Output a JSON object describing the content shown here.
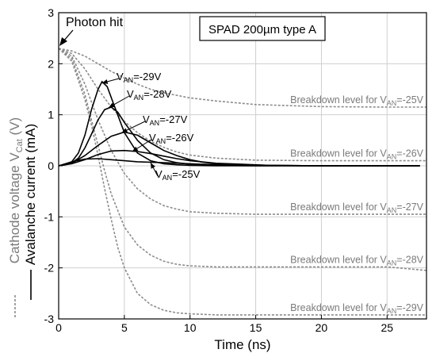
{
  "chart_data": {
    "type": "line",
    "title": "SPAD 200µm type A",
    "xlabel": "Time (ns)",
    "ylabel_cathode": {
      "main": "Cathode voltage V",
      "sub": "Cat",
      "unit": " (V)"
    },
    "ylabel_current": "Avalanche current (mA)",
    "xlim": [
      0,
      28
    ],
    "ylim": [
      -3,
      3
    ],
    "x_ticks": [
      0,
      5,
      10,
      15,
      20,
      25
    ],
    "y_ticks": [
      3,
      2,
      1,
      0,
      -1,
      -2,
      -3
    ],
    "grid": true,
    "annotation": "Photon hit",
    "colors": {
      "current": "#000000",
      "cathode": "#8c8c8c",
      "grid": "#cfcfcf"
    },
    "breakdown_labels": [
      {
        "prefix": "Breakdown level for V",
        "sub": "AN",
        "suffix": "=-25V",
        "level": 1.15
      },
      {
        "prefix": "Breakdown level for V",
        "sub": "AN",
        "suffix": "=-26V",
        "level": 0.1
      },
      {
        "prefix": "Breakdown level for V",
        "sub": "AN",
        "suffix": "=-27V",
        "level": -0.95
      },
      {
        "prefix": "Breakdown level for V",
        "sub": "AN",
        "suffix": "=-28V",
        "level": -1.98
      },
      {
        "prefix": "Breakdown level for V",
        "sub": "AN",
        "suffix": "=-29V",
        "level": -2.92
      }
    ],
    "current_series": [
      {
        "prefix": "V",
        "sub": "AN",
        "suffix": "=-29V",
        "x": [
          0,
          0.5,
          1,
          1.5,
          2,
          2.5,
          3,
          3.3,
          3.7,
          4.2,
          5,
          6,
          7,
          8,
          9,
          10,
          12,
          15,
          20,
          25,
          27.5
        ],
        "values": [
          0,
          0.02,
          0.08,
          0.25,
          0.6,
          1.1,
          1.5,
          1.65,
          1.55,
          1.2,
          0.65,
          0.25,
          0.1,
          0.04,
          0.02,
          0.01,
          0,
          0,
          0,
          0,
          0
        ]
      },
      {
        "prefix": "V",
        "sub": "AN",
        "suffix": "=-28V",
        "x": [
          0,
          0.5,
          1,
          1.5,
          2,
          2.5,
          3,
          3.5,
          4,
          4.5,
          5,
          6,
          7,
          8,
          9,
          10,
          12,
          15,
          20,
          25,
          27.5
        ],
        "values": [
          0,
          0.02,
          0.06,
          0.15,
          0.35,
          0.62,
          0.9,
          1.1,
          1.15,
          1.05,
          0.85,
          0.5,
          0.25,
          0.12,
          0.06,
          0.03,
          0.01,
          0,
          0,
          0,
          0
        ]
      },
      {
        "prefix": "V",
        "sub": "AN",
        "suffix": "=-27V",
        "x": [
          0,
          1,
          2,
          3,
          4,
          5,
          6,
          7,
          8,
          9,
          10,
          11,
          12,
          14,
          16,
          20,
          25,
          27.5
        ],
        "values": [
          0,
          0.05,
          0.2,
          0.4,
          0.58,
          0.66,
          0.6,
          0.45,
          0.3,
          0.2,
          0.12,
          0.07,
          0.04,
          0.02,
          0.01,
          0,
          0,
          0
        ]
      },
      {
        "prefix": "V",
        "sub": "AN",
        "suffix": "=-26V",
        "x": [
          0,
          1,
          2,
          3,
          4,
          5,
          6,
          7,
          8,
          9,
          10,
          12,
          14,
          16,
          20,
          25,
          27.5
        ],
        "values": [
          0,
          0.04,
          0.12,
          0.22,
          0.29,
          0.3,
          0.28,
          0.24,
          0.19,
          0.14,
          0.1,
          0.05,
          0.03,
          0.01,
          0,
          0,
          0
        ]
      },
      {
        "prefix": "V",
        "sub": "AN",
        "suffix": "=-25V",
        "x": [
          0,
          1,
          2,
          3,
          4,
          5,
          6,
          8,
          10,
          12,
          15,
          20,
          25,
          27.5
        ],
        "values": [
          0,
          0.08,
          0.13,
          0.14,
          0.12,
          0.1,
          0.08,
          0.06,
          0.04,
          0.02,
          0.01,
          0,
          0,
          0
        ]
      }
    ],
    "cathode_series": [
      {
        "x": [
          0,
          1,
          2,
          3,
          4,
          5,
          6,
          7,
          8,
          10,
          12,
          15,
          20,
          25,
          28
        ],
        "values": [
          2.3,
          2.25,
          2.15,
          2.0,
          1.85,
          1.72,
          1.6,
          1.5,
          1.43,
          1.33,
          1.27,
          1.2,
          1.16,
          1.15,
          1.15
        ]
      },
      {
        "x": [
          0,
          1,
          2,
          3,
          4,
          5,
          6,
          7,
          8,
          9,
          10,
          12,
          15,
          20,
          25,
          28
        ],
        "values": [
          2.3,
          2.2,
          1.9,
          1.5,
          1.15,
          0.87,
          0.65,
          0.48,
          0.36,
          0.27,
          0.21,
          0.15,
          0.11,
          0.1,
          0.1,
          0.1
        ]
      },
      {
        "x": [
          0,
          1,
          2,
          3,
          4,
          5,
          6,
          7,
          8,
          9,
          10,
          12,
          15,
          20,
          25,
          28
        ],
        "values": [
          2.3,
          2.15,
          1.6,
          0.9,
          0.3,
          -0.15,
          -0.45,
          -0.65,
          -0.78,
          -0.85,
          -0.9,
          -0.93,
          -0.95,
          -0.95,
          -0.95,
          -0.95
        ]
      },
      {
        "x": [
          0,
          1,
          2,
          3,
          3.5,
          4,
          5,
          6,
          7,
          8,
          9,
          10,
          12,
          15,
          20,
          25,
          28
        ],
        "values": [
          2.3,
          2.1,
          1.4,
          0.4,
          -0.1,
          -0.55,
          -1.2,
          -1.55,
          -1.75,
          -1.87,
          -1.93,
          -1.96,
          -1.98,
          -1.98,
          -1.98,
          -1.98,
          -2.05
        ]
      },
      {
        "x": [
          0,
          1,
          2,
          2.5,
          3,
          3.5,
          4,
          4.5,
          5,
          6,
          7,
          8,
          9,
          10,
          12,
          15,
          20,
          25,
          28
        ],
        "values": [
          2.3,
          2.05,
          1.3,
          0.8,
          0.2,
          -0.45,
          -1.05,
          -1.6,
          -2.0,
          -2.5,
          -2.72,
          -2.83,
          -2.88,
          -2.9,
          -2.92,
          -2.92,
          -2.92,
          -2.92,
          -2.92
        ]
      }
    ]
  }
}
